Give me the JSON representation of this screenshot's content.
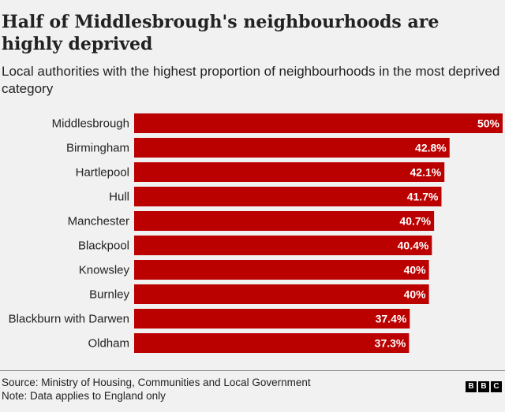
{
  "header": {
    "title": "Half of Middlesbrough's neighbourhoods are highly deprived",
    "subtitle": "Local authorities with the highest proportion of neighbourhoods in the most deprived category"
  },
  "chart_data": {
    "type": "bar",
    "orientation": "horizontal",
    "categories": [
      "Middlesbrough",
      "Birmingham",
      "Hartlepool",
      "Hull",
      "Manchester",
      "Blackpool",
      "Knowsley",
      "Burnley",
      "Blackburn with Darwen",
      "Oldham"
    ],
    "values": [
      50,
      42.8,
      42.1,
      41.7,
      40.7,
      40.4,
      40,
      40,
      37.4,
      37.3
    ],
    "value_labels": [
      "50%",
      "42.8%",
      "42.1%",
      "41.7%",
      "40.7%",
      "40.4%",
      "40%",
      "40%",
      "37.4%",
      "37.3%"
    ],
    "xlim": [
      0,
      50
    ],
    "grid": false,
    "legend": "none",
    "bar_color": "#bb0000"
  },
  "footer": {
    "source": "Source: Ministry of Housing, Communities and Local Government",
    "note": "Note: Data applies to England only"
  },
  "logo": {
    "letters": [
      "B",
      "B",
      "C"
    ]
  }
}
